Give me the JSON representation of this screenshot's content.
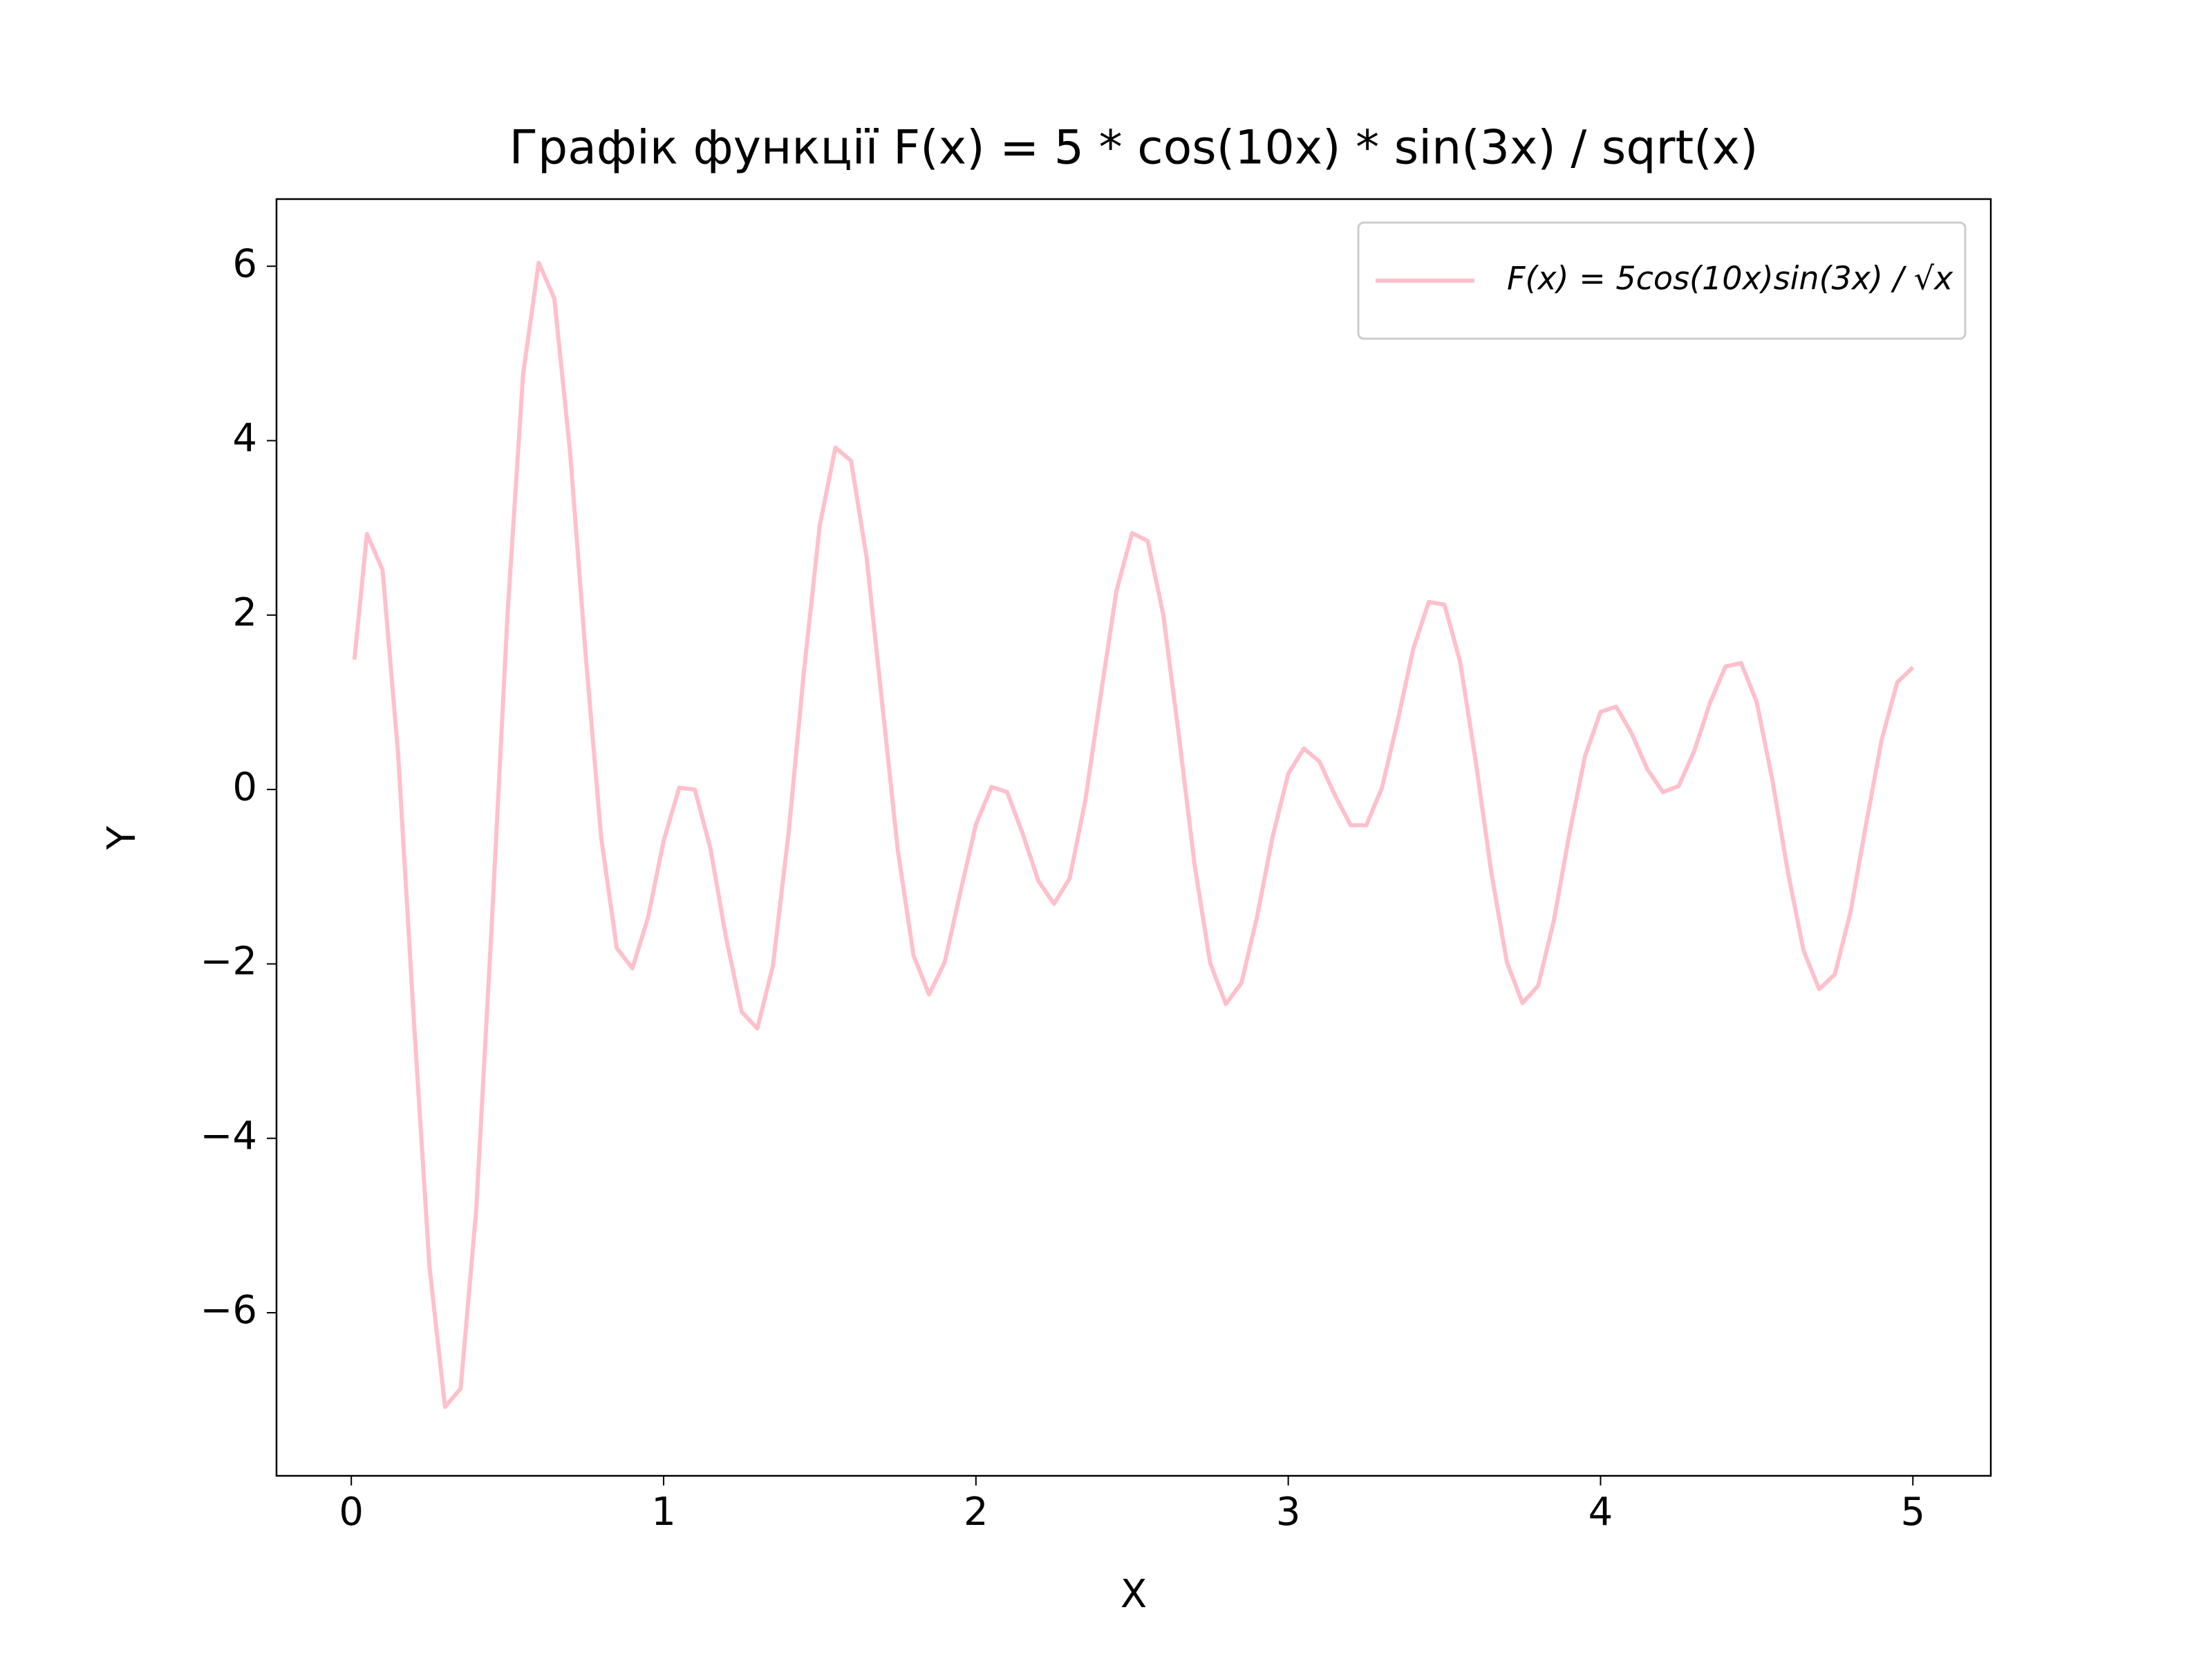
{
  "chart_data": {
    "type": "line",
    "title": "Графік функції F(x) = 5 * cos(10x) * sin(3x) / sqrt(x)",
    "x_label": "X",
    "y_label": "Y",
    "x": [
      0.01,
      0.05,
      0.1,
      0.15,
      0.2,
      0.25,
      0.3,
      0.35,
      0.4,
      0.45,
      0.5,
      0.55,
      0.6,
      0.65,
      0.7,
      0.75,
      0.8,
      0.85,
      0.9,
      0.95,
      1.0,
      1.05,
      1.1,
      1.15,
      1.2,
      1.25,
      1.3,
      1.35,
      1.4,
      1.45,
      1.5,
      1.55,
      1.6,
      1.65,
      1.7,
      1.75,
      1.8,
      1.85,
      1.9,
      1.95,
      2.0,
      2.05,
      2.1,
      2.15,
      2.2,
      2.25,
      2.3,
      2.35,
      2.4,
      2.45,
      2.5,
      2.55,
      2.6,
      2.65,
      2.7,
      2.75,
      2.8,
      2.85,
      2.9,
      2.95,
      3.0,
      3.05,
      3.1,
      3.15,
      3.2,
      3.25,
      3.3,
      3.35,
      3.4,
      3.45,
      3.5,
      3.55,
      3.6,
      3.65,
      3.7,
      3.75,
      3.8,
      3.85,
      3.9,
      3.95,
      4.0,
      4.05,
      4.1,
      4.15,
      4.2,
      4.25,
      4.3,
      4.35,
      4.4,
      4.45,
      4.5,
      4.55,
      4.6,
      4.65,
      4.7,
      4.75,
      4.8,
      4.85,
      4.9,
      4.95,
      5.0
    ],
    "series": [
      {
        "name": "F(x) = 5cos(10x)sin(3x) / √x",
        "color": "#ffc0cb",
        "values": [
          1.49,
          2.93,
          2.52,
          0.4,
          -2.63,
          -5.46,
          -7.08,
          -6.87,
          -4.82,
          -1.53,
          2.0,
          4.76,
          6.04,
          5.63,
          3.89,
          1.56,
          -0.55,
          -1.82,
          -2.05,
          -1.47,
          -0.59,
          0.02,
          0.0,
          -0.68,
          -1.7,
          -2.55,
          -2.74,
          -2.02,
          -0.5,
          1.38,
          3.03,
          3.92,
          3.77,
          2.66,
          0.98,
          -0.7,
          -1.9,
          -2.35,
          -1.98,
          -1.18,
          -0.4,
          0.03,
          -0.03,
          -0.51,
          -1.05,
          -1.31,
          -1.02,
          -0.13,
          1.09,
          2.28,
          2.94,
          2.85,
          2.0,
          0.61,
          -0.86,
          -1.99,
          -2.46,
          -2.22,
          -1.46,
          -0.54,
          0.18,
          0.47,
          0.32,
          -0.07,
          -0.41,
          -0.41,
          0.02,
          0.78,
          1.61,
          2.15,
          2.12,
          1.47,
          0.33,
          -0.95,
          -1.98,
          -2.45,
          -2.25,
          -1.51,
          -0.51,
          0.38,
          0.89,
          0.95,
          0.64,
          0.23,
          -0.03,
          0.04,
          0.44,
          0.99,
          1.41,
          1.45,
          1.0,
          0.11,
          -0.95,
          -1.85,
          -2.29,
          -2.12,
          -1.41,
          -0.4,
          0.57,
          1.23,
          1.4
        ]
      }
    ],
    "xlim": [
      -0.2395,
      5.2495
    ],
    "ylim": [
      -7.87,
      6.77
    ],
    "xticks": [
      0,
      1,
      2,
      3,
      4,
      5
    ],
    "yticks": [
      {
        "value": -6,
        "label": "−6"
      },
      {
        "value": -4,
        "label": "−4"
      },
      {
        "value": -2,
        "label": "−2"
      },
      0,
      2,
      4,
      6
    ],
    "legend": "upper right",
    "grid": false
  }
}
